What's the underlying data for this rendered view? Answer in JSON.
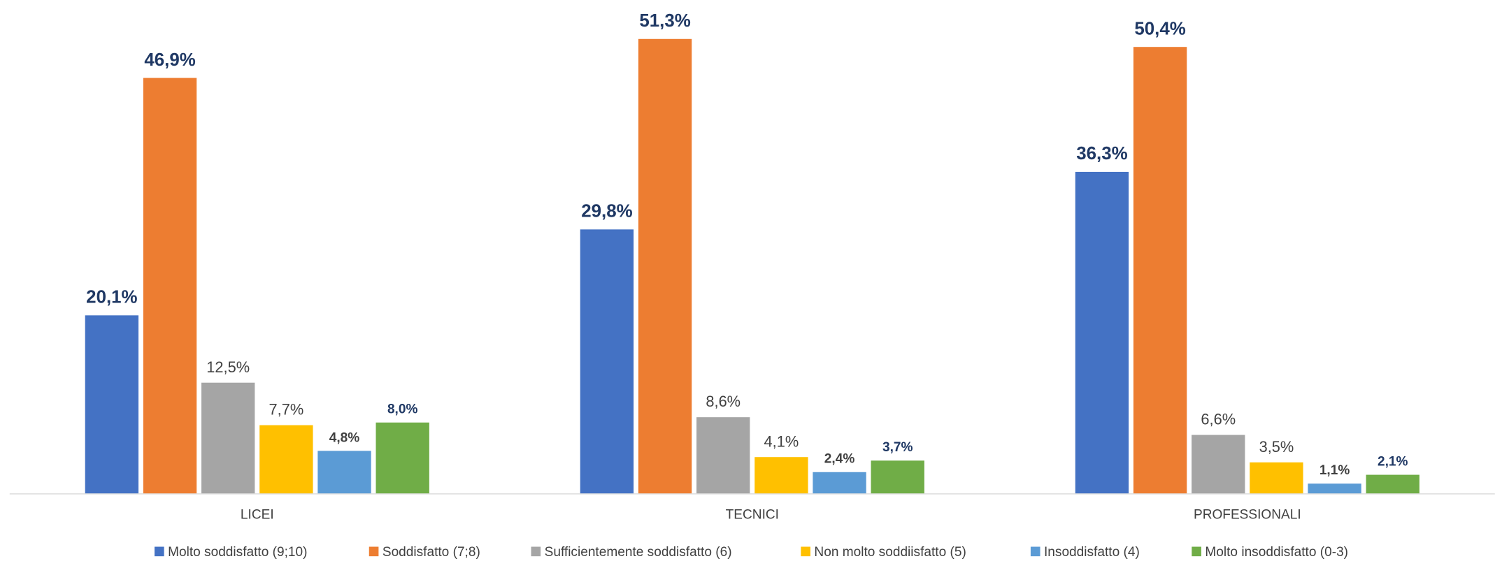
{
  "chart_data": {
    "type": "bar",
    "categories": [
      "LICEI",
      "TECNICI",
      "PROFESSIONALI"
    ],
    "series": [
      {
        "name": "Molto soddisfatto (9;10)",
        "color": "#4472c4",
        "values": [
          20.1,
          29.8,
          36.3
        ],
        "value_labels": [
          "20,1%",
          "29,8%",
          "36,3%"
        ]
      },
      {
        "name": "Soddisfatto (7;8)",
        "color": "#ed7d31",
        "values": [
          46.9,
          51.3,
          50.4
        ],
        "value_labels": [
          "46,9%",
          "51,3%",
          "50,4%"
        ]
      },
      {
        "name": "Sufficientemente soddisfatto (6)",
        "color": "#a5a5a5",
        "values": [
          12.5,
          8.6,
          6.6
        ],
        "value_labels": [
          "12,5%",
          "8,6%",
          "6,6%"
        ]
      },
      {
        "name": "Non molto soddiisfatto (5)",
        "color": "#ffc000",
        "values": [
          7.7,
          4.1,
          3.5
        ],
        "value_labels": [
          "7,7%",
          "4,1%",
          "3,5%"
        ]
      },
      {
        "name": "Insoddisfatto (4)",
        "color": "#5b9bd5",
        "values": [
          4.8,
          2.4,
          1.1
        ],
        "value_labels": [
          "4,8%",
          "2,4%",
          "1,1%"
        ]
      },
      {
        "name": "Molto insoddisfatto (0-3)",
        "color": "#70ad47",
        "values": [
          8.0,
          3.7,
          2.1
        ],
        "value_labels": [
          "8,0%",
          "3,7%",
          "2,1%"
        ]
      }
    ],
    "legend": "bottom"
  }
}
